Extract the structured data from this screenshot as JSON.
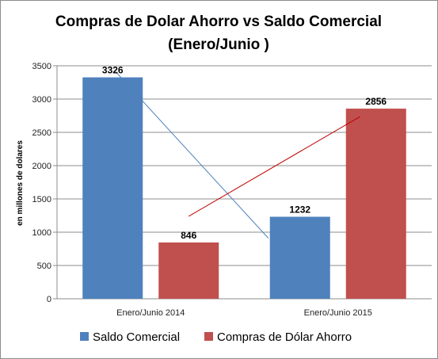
{
  "chart_data": {
    "type": "bar",
    "title_line1": "Compras de Dolar Ahorro vs Saldo Comercial",
    "title_line2": "(Enero/Junio )",
    "ylabel": "en millones de dolares",
    "xlabel": "",
    "ylim": [
      0,
      3500
    ],
    "yticks": [
      "0",
      "500",
      "1000",
      "1500",
      "2000",
      "2500",
      "3000",
      "3500"
    ],
    "categories": [
      "Enero/Junio 2014",
      "Enero/Junio 2015"
    ],
    "series": [
      {
        "name": "Saldo Comercial",
        "color": "#4f81bd",
        "values": [
          3326,
          1232
        ],
        "labels": [
          "3326",
          "1232"
        ]
      },
      {
        "name": "Compras de Dólar Ahorro",
        "color": "#c0504d",
        "values": [
          846,
          2856
        ],
        "labels": [
          "846",
          "2856"
        ]
      }
    ],
    "trend_lines": [
      {
        "series": "Saldo Comercial",
        "color": "#4f81bd",
        "from": 3326,
        "to": 1232
      },
      {
        "series": "Compras de Dólar Ahorro",
        "color": "#c00000",
        "from": 846,
        "to": 2856
      }
    ],
    "grid": true,
    "legend_position": "bottom"
  }
}
